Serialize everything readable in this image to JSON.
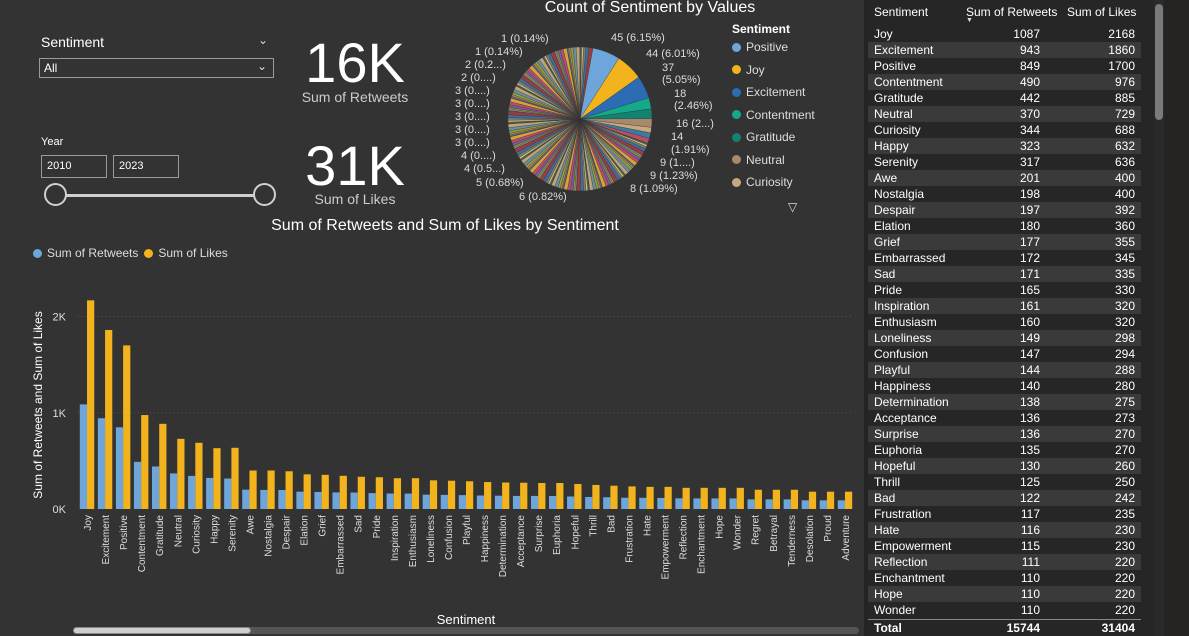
{
  "slicer": {
    "title": "Sentiment",
    "selected": "All",
    "year_label": "Year",
    "year_from": "2010",
    "year_to": "2023"
  },
  "kpis": [
    {
      "value": "16K",
      "label": "Sum of Retweets"
    },
    {
      "value": "31K",
      "label": "Sum of Likes"
    }
  ],
  "pie": {
    "title": "Count of Sentiment by Values",
    "legend_title": "Sentiment",
    "legend": [
      {
        "label": "Positive",
        "color": "#6ea6db"
      },
      {
        "label": "Joy",
        "color": "#f2b31d"
      },
      {
        "label": "Excitement",
        "color": "#2c6cb5"
      },
      {
        "label": "Contentment",
        "color": "#14a98b"
      },
      {
        "label": "Gratitude",
        "color": "#148271"
      },
      {
        "label": "Neutral",
        "color": "#a8896e"
      },
      {
        "label": "Curiosity",
        "color": "#c6a97e"
      }
    ],
    "labels_left": [
      "1 (0.14%)",
      "1 (0.14%)",
      "2 (0.2...)",
      "2 (0....)",
      "3 (0....)",
      "3 (0....)",
      "3 (0....)",
      "3 (0....)",
      "3 (0....)",
      "4 (0....)",
      "4 (0.5...)",
      "5 (0.68%)",
      "6 (0.82%)"
    ],
    "labels_right": [
      "45 (6.15%)",
      "44 (6.01%)",
      "37",
      "(5.05%)",
      "18",
      "(2.46%)",
      "16 (2...)",
      "14",
      "(1.91%)",
      "9 (1....)",
      "9 (1.23%)",
      "8 (1.09%)"
    ]
  },
  "bar_chart_text": {
    "title": "Sum of Retweets and Sum of Likes by Sentiment",
    "xlabel": "Sentiment",
    "ylabel": "Sum of Retweets and Sum of Likes",
    "legend_retweets": "Sum of Retweets",
    "legend_likes": "Sum of Likes"
  },
  "chart_data": {
    "type": "bar",
    "categories": [
      "Joy",
      "Excitement",
      "Positive",
      "Contentment",
      "Gratitude",
      "Neutral",
      "Curiosity",
      "Happy",
      "Serenity",
      "Awe",
      "Nostalgia",
      "Despair",
      "Elation",
      "Grief",
      "Embarrassed",
      "Sad",
      "Pride",
      "Inspiration",
      "Enthusiasm",
      "Loneliness",
      "Confusion",
      "Playful",
      "Happiness",
      "Determination",
      "Acceptance",
      "Surprise",
      "Euphoria",
      "Hopeful",
      "Thrill",
      "Bad",
      "Frustration",
      "Hate",
      "Empowerment",
      "Reflection",
      "Enchantment",
      "Hope",
      "Wonder",
      "Regret",
      "Betrayal",
      "Tenderness",
      "Desolation",
      "Proud",
      "Adventure"
    ],
    "series": [
      {
        "name": "Sum of Retweets",
        "color": "#6ea6db",
        "values": [
          1087,
          943,
          849,
          490,
          442,
          370,
          344,
          323,
          317,
          201,
          198,
          197,
          180,
          177,
          172,
          171,
          165,
          161,
          160,
          149,
          147,
          144,
          140,
          138,
          136,
          136,
          135,
          130,
          125,
          122,
          117,
          116,
          115,
          111,
          110,
          110,
          110,
          100,
          100,
          100,
          90,
          90,
          90
        ]
      },
      {
        "name": "Sum of Likes",
        "color": "#f2b31d",
        "values": [
          2168,
          1860,
          1700,
          976,
          885,
          729,
          688,
          632,
          636,
          400,
          400,
          392,
          360,
          355,
          345,
          335,
          330,
          320,
          320,
          298,
          294,
          288,
          280,
          275,
          273,
          270,
          270,
          260,
          250,
          242,
          235,
          230,
          230,
          220,
          220,
          220,
          220,
          200,
          200,
          200,
          180,
          180,
          180
        ]
      }
    ],
    "yticks": [
      "0K",
      "1K",
      "2K"
    ],
    "ylim": [
      0,
      2400
    ]
  },
  "table": {
    "headers": [
      "Sentiment",
      "Sum of Retweets",
      "Sum of Likes"
    ],
    "rows": [
      [
        "Joy",
        "1087",
        "2168"
      ],
      [
        "Excitement",
        "943",
        "1860"
      ],
      [
        "Positive",
        "849",
        "1700"
      ],
      [
        "Contentment",
        "490",
        "976"
      ],
      [
        "Gratitude",
        "442",
        "885"
      ],
      [
        "Neutral",
        "370",
        "729"
      ],
      [
        "Curiosity",
        "344",
        "688"
      ],
      [
        "Happy",
        "323",
        "632"
      ],
      [
        "Serenity",
        "317",
        "636"
      ],
      [
        "Awe",
        "201",
        "400"
      ],
      [
        "Nostalgia",
        "198",
        "400"
      ],
      [
        "Despair",
        "197",
        "392"
      ],
      [
        "Elation",
        "180",
        "360"
      ],
      [
        "Grief",
        "177",
        "355"
      ],
      [
        "Embarrassed",
        "172",
        "345"
      ],
      [
        "Sad",
        "171",
        "335"
      ],
      [
        "Pride",
        "165",
        "330"
      ],
      [
        "Inspiration",
        "161",
        "320"
      ],
      [
        "Enthusiasm",
        "160",
        "320"
      ],
      [
        "Loneliness",
        "149",
        "298"
      ],
      [
        "Confusion",
        "147",
        "294"
      ],
      [
        "Playful",
        "144",
        "288"
      ],
      [
        "Happiness",
        "140",
        "280"
      ],
      [
        "Determination",
        "138",
        "275"
      ],
      [
        "Acceptance",
        "136",
        "273"
      ],
      [
        "Surprise",
        "136",
        "270"
      ],
      [
        "Euphoria",
        "135",
        "270"
      ],
      [
        "Hopeful",
        "130",
        "260"
      ],
      [
        "Thrill",
        "125",
        "250"
      ],
      [
        "Bad",
        "122",
        "242"
      ],
      [
        "Frustration",
        "117",
        "235"
      ],
      [
        "Hate",
        "116",
        "230"
      ],
      [
        "Empowerment",
        "115",
        "230"
      ],
      [
        "Reflection",
        "111",
        "220"
      ],
      [
        "Enchantment",
        "110",
        "220"
      ],
      [
        "Hope",
        "110",
        "220"
      ],
      [
        "Wonder",
        "110",
        "220"
      ]
    ],
    "total": [
      "Total",
      "15744",
      "31404"
    ]
  }
}
